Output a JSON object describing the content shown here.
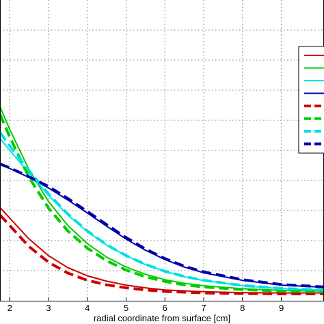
{
  "chart_data": {
    "type": "line",
    "title": "",
    "xlabel": "radial coordinate from surface [cm]",
    "ylabel": "",
    "xlim": [
      1.75,
      10.1
    ],
    "ylim": [
      0.0,
      1.0
    ],
    "x_ticks": [
      2,
      3,
      4,
      5,
      6,
      7,
      8,
      9
    ],
    "x_tick_labels": [
      "2",
      "3",
      "4",
      "5",
      "6",
      "7",
      "8",
      "9"
    ],
    "grid": true,
    "legend": {
      "placement": "right",
      "entries": 8,
      "labels": [
        "",
        "",
        "",
        "",
        "",
        "",
        "",
        ""
      ]
    },
    "series": [
      {
        "color": "#cc0000",
        "style": "solid",
        "x": [
          1.75,
          2.0,
          2.5,
          3.0,
          3.5,
          4.0,
          4.5,
          5.0,
          5.5,
          6.0,
          7.0,
          8.0,
          9.0,
          10.1
        ],
        "y": [
          0.31,
          0.275,
          0.205,
          0.15,
          0.11,
          0.083,
          0.065,
          0.052,
          0.043,
          0.036,
          0.03,
          0.027,
          0.026,
          0.026
        ]
      },
      {
        "color": "#00cc00",
        "style": "solid",
        "x": [
          1.75,
          2.0,
          2.5,
          3.0,
          3.5,
          4.0,
          4.5,
          5.0,
          5.5,
          6.0,
          6.5,
          7.0,
          8.0,
          9.0,
          10.1
        ],
        "y": [
          0.645,
          0.57,
          0.435,
          0.33,
          0.25,
          0.19,
          0.145,
          0.112,
          0.088,
          0.07,
          0.058,
          0.05,
          0.04,
          0.034,
          0.032
        ]
      },
      {
        "color": "#00e0e0",
        "style": "solid",
        "x": [
          1.75,
          2.0,
          2.5,
          3.0,
          3.5,
          4.0,
          4.5,
          5.0,
          5.5,
          6.0,
          6.5,
          7.0,
          8.0,
          9.0,
          10.1
        ],
        "y": [
          0.54,
          0.5,
          0.425,
          0.35,
          0.285,
          0.23,
          0.185,
          0.15,
          0.12,
          0.098,
          0.08,
          0.067,
          0.05,
          0.04,
          0.035
        ]
      },
      {
        "color": "#0000aa",
        "style": "solid",
        "x": [
          1.75,
          2.0,
          2.5,
          3.0,
          3.5,
          4.0,
          4.5,
          5.0,
          5.5,
          6.0,
          6.5,
          7.0,
          8.0,
          9.0,
          10.1
        ],
        "y": [
          0.455,
          0.44,
          0.41,
          0.375,
          0.335,
          0.292,
          0.248,
          0.205,
          0.168,
          0.137,
          0.112,
          0.093,
          0.068,
          0.052,
          0.045
        ]
      },
      {
        "color": "#cc0000",
        "style": "dashed",
        "x": [
          1.75,
          2.0,
          2.5,
          3.0,
          3.5,
          4.0,
          4.5,
          5.0,
          5.5,
          6.0,
          7.0,
          8.0,
          9.0,
          10.1
        ],
        "y": [
          0.285,
          0.25,
          0.18,
          0.128,
          0.092,
          0.068,
          0.053,
          0.043,
          0.036,
          0.031,
          0.026,
          0.024,
          0.023,
          0.023
        ]
      },
      {
        "color": "#00cc00",
        "style": "dashed",
        "x": [
          1.75,
          2.0,
          2.5,
          3.0,
          3.5,
          4.0,
          4.5,
          5.0,
          5.5,
          6.0,
          6.5,
          7.0,
          8.0,
          9.0,
          10.1
        ],
        "y": [
          0.62,
          0.545,
          0.41,
          0.308,
          0.232,
          0.175,
          0.133,
          0.102,
          0.08,
          0.064,
          0.053,
          0.046,
          0.037,
          0.032,
          0.03
        ]
      },
      {
        "color": "#00e0e0",
        "style": "dashed",
        "x": [
          1.75,
          2.0,
          2.5,
          3.0,
          3.5,
          4.0,
          4.5,
          5.0,
          5.5,
          6.0,
          6.5,
          7.0,
          8.0,
          9.0,
          10.1
        ],
        "y": [
          0.56,
          0.515,
          0.432,
          0.355,
          0.288,
          0.232,
          0.186,
          0.15,
          0.121,
          0.098,
          0.081,
          0.068,
          0.051,
          0.041,
          0.036
        ]
      },
      {
        "color": "#0000aa",
        "style": "dashed",
        "x": [
          1.75,
          2.0,
          2.5,
          3.0,
          3.5,
          4.0,
          4.5,
          5.0,
          5.5,
          6.0,
          6.5,
          7.0,
          8.0,
          9.0,
          10.1
        ],
        "y": [
          0.455,
          0.442,
          0.412,
          0.38,
          0.34,
          0.297,
          0.253,
          0.21,
          0.172,
          0.14,
          0.115,
          0.096,
          0.07,
          0.054,
          0.046
        ]
      }
    ]
  }
}
